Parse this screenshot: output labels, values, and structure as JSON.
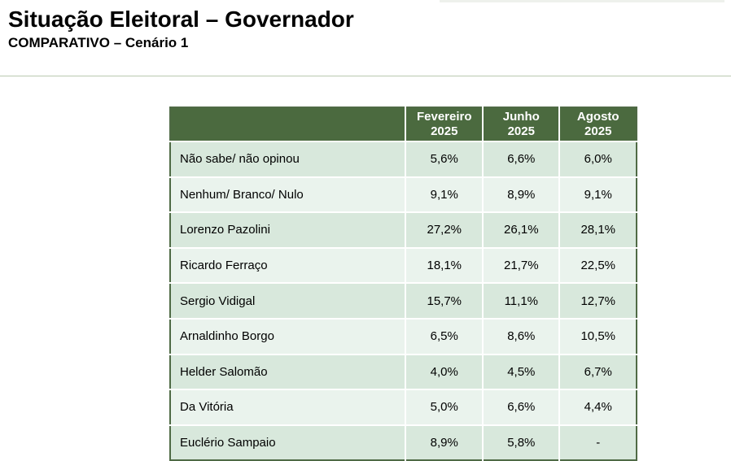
{
  "header": {
    "title": "Situação Eleitoral – Governador",
    "subtitle": "COMPARATIVO – Cenário 1"
  },
  "table": {
    "columns": [
      {
        "line1": "Fevereiro",
        "line2": "2025"
      },
      {
        "line1": "Junho",
        "line2": "2025"
      },
      {
        "line1": "Agosto",
        "line2": "2025"
      }
    ],
    "rows": [
      {
        "label": "Não sabe/ não opinou",
        "values": [
          "5,6%",
          "6,6%",
          "6,0%"
        ]
      },
      {
        "label": "Nenhum/ Branco/ Nulo",
        "values": [
          "9,1%",
          "8,9%",
          "9,1%"
        ]
      },
      {
        "label": "Lorenzo Pazolini",
        "values": [
          "27,2%",
          "26,1%",
          "28,1%"
        ]
      },
      {
        "label": "Ricardo Ferraço",
        "values": [
          "18,1%",
          "21,7%",
          "22,5%"
        ]
      },
      {
        "label": "Sergio Vidigal",
        "values": [
          "15,7%",
          "11,1%",
          "12,7%"
        ]
      },
      {
        "label": "Arnaldinho Borgo",
        "values": [
          "6,5%",
          "8,6%",
          "10,5%"
        ]
      },
      {
        "label": "Helder Salomão",
        "values": [
          "4,0%",
          "4,5%",
          "6,7%"
        ]
      },
      {
        "label": "Da Vitória",
        "values": [
          "5,0%",
          "6,6%",
          "4,4%"
        ]
      },
      {
        "label": "Euclério Sampaio",
        "values": [
          "8,9%",
          "5,8%",
          "-"
        ]
      }
    ]
  },
  "colors": {
    "header_bg": "#4b6a3f",
    "row_dark": "#d8e8dc",
    "row_light": "#eaf3ed"
  }
}
